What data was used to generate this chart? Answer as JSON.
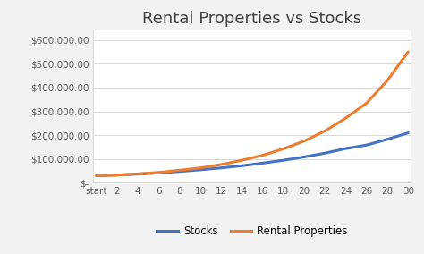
{
  "title": "Rental Properties vs Stocks",
  "x_labels": [
    "start",
    "2",
    "4",
    "6",
    "8",
    "10",
    "12",
    "14",
    "16",
    "18",
    "20",
    "22",
    "24",
    "26",
    "28",
    "30"
  ],
  "x_values": [
    0,
    2,
    4,
    6,
    8,
    10,
    12,
    14,
    16,
    18,
    20,
    22,
    24,
    26,
    28,
    30
  ],
  "stocks_values": [
    30000,
    33000,
    37000,
    42000,
    48000,
    55000,
    63000,
    72000,
    83000,
    95000,
    109000,
    125000,
    144000,
    159000,
    183000,
    210000
  ],
  "rental_values": [
    30000,
    33000,
    38000,
    44000,
    53000,
    63000,
    77000,
    95000,
    116000,
    143000,
    176000,
    218000,
    272000,
    335000,
    430000,
    550000
  ],
  "stocks_color": "#4472C4",
  "rental_color": "#ED7D31",
  "figure_bg_color": "#F2F2F2",
  "plot_bg_color": "#FFFFFF",
  "grid_color": "#D9D9D9",
  "ylim": [
    0,
    640000
  ],
  "yticks": [
    0,
    100000,
    200000,
    300000,
    400000,
    500000,
    600000
  ],
  "ytick_labels": [
    "$-",
    "$100,000.00",
    "$200,000.00",
    "$300,000.00",
    "$400,000.00",
    "$500,000.00",
    "$600,000.00"
  ],
  "legend_labels": [
    "Stocks",
    "Rental Properties"
  ],
  "line_width": 2.2,
  "title_fontsize": 13,
  "tick_fontsize": 7.5,
  "legend_fontsize": 8.5,
  "title_color": "#404040",
  "tick_color": "#595959"
}
